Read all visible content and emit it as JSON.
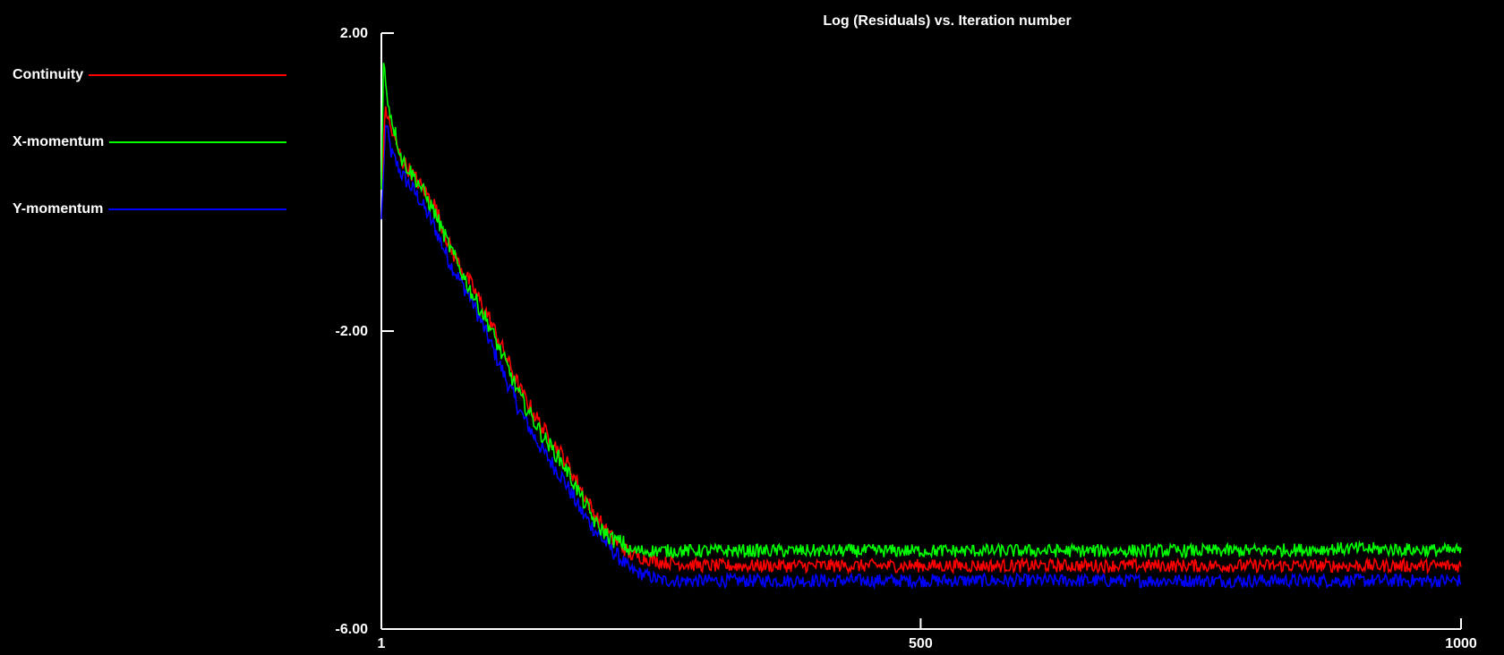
{
  "chart_data": {
    "type": "line",
    "title": "Log (Residuals) vs. Iteration number",
    "xlabel": "",
    "ylabel": "",
    "xlim": [
      1,
      1000
    ],
    "ylim": [
      -6.0,
      2.0
    ],
    "x_ticks": [
      {
        "value": 1,
        "label": "1"
      },
      {
        "value": 500,
        "label": "500"
      },
      {
        "value": 1000,
        "label": "1000"
      }
    ],
    "y_ticks": [
      {
        "value": 2.0,
        "label": "2.00"
      },
      {
        "value": -2.0,
        "label": "-2.00"
      },
      {
        "value": -6.0,
        "label": "-6.00"
      }
    ],
    "grid": false,
    "legend_position": "left",
    "series": [
      {
        "name": "Continuity",
        "color": "#ff0000",
        "points": [
          [
            1,
            -0.1
          ],
          [
            5,
            1.0
          ],
          [
            10,
            0.7
          ],
          [
            20,
            0.3
          ],
          [
            35,
            0.0
          ],
          [
            50,
            -0.3
          ],
          [
            65,
            -0.9
          ],
          [
            85,
            -1.4
          ],
          [
            100,
            -1.8
          ],
          [
            115,
            -2.3
          ],
          [
            130,
            -2.8
          ],
          [
            150,
            -3.3
          ],
          [
            170,
            -3.7
          ],
          [
            185,
            -4.1
          ],
          [
            200,
            -4.5
          ],
          [
            215,
            -4.8
          ],
          [
            225,
            -4.9
          ],
          [
            230,
            -5.0
          ],
          [
            260,
            -5.1
          ],
          [
            300,
            -5.15
          ],
          [
            400,
            -5.15
          ],
          [
            500,
            -5.15
          ],
          [
            600,
            -5.15
          ],
          [
            700,
            -5.15
          ],
          [
            800,
            -5.15
          ],
          [
            900,
            -5.15
          ],
          [
            1000,
            -5.15
          ]
        ]
      },
      {
        "name": "X-momentum",
        "color": "#00ff00",
        "points": [
          [
            1,
            -0.1
          ],
          [
            3,
            1.6
          ],
          [
            8,
            1.0
          ],
          [
            20,
            0.3
          ],
          [
            35,
            0.0
          ],
          [
            50,
            -0.4
          ],
          [
            65,
            -0.9
          ],
          [
            85,
            -1.5
          ],
          [
            100,
            -1.9
          ],
          [
            115,
            -2.4
          ],
          [
            130,
            -2.9
          ],
          [
            150,
            -3.4
          ],
          [
            170,
            -3.8
          ],
          [
            185,
            -4.2
          ],
          [
            200,
            -4.6
          ],
          [
            215,
            -4.8
          ],
          [
            225,
            -4.85
          ],
          [
            230,
            -4.95
          ],
          [
            260,
            -4.95
          ],
          [
            300,
            -4.95
          ],
          [
            400,
            -4.95
          ],
          [
            500,
            -4.95
          ],
          [
            600,
            -4.95
          ],
          [
            700,
            -4.95
          ],
          [
            800,
            -4.95
          ],
          [
            900,
            -4.92
          ],
          [
            1000,
            -4.95
          ]
        ]
      },
      {
        "name": "Y-momentum",
        "color": "#0000ff",
        "points": [
          [
            1,
            -0.5
          ],
          [
            5,
            0.8
          ],
          [
            10,
            0.4
          ],
          [
            20,
            0.1
          ],
          [
            35,
            -0.2
          ],
          [
            50,
            -0.6
          ],
          [
            65,
            -1.1
          ],
          [
            85,
            -1.6
          ],
          [
            100,
            -2.1
          ],
          [
            115,
            -2.6
          ],
          [
            130,
            -3.1
          ],
          [
            150,
            -3.6
          ],
          [
            170,
            -4.0
          ],
          [
            185,
            -4.4
          ],
          [
            200,
            -4.7
          ],
          [
            215,
            -4.95
          ],
          [
            225,
            -5.1
          ],
          [
            230,
            -5.2
          ],
          [
            260,
            -5.35
          ],
          [
            300,
            -5.35
          ],
          [
            400,
            -5.35
          ],
          [
            500,
            -5.35
          ],
          [
            600,
            -5.35
          ],
          [
            700,
            -5.35
          ],
          [
            800,
            -5.35
          ],
          [
            900,
            -5.35
          ],
          [
            1000,
            -5.35
          ]
        ]
      }
    ]
  },
  "legend": [
    {
      "label": "Continuity",
      "color": "#ff0000"
    },
    {
      "label": "X-momentum",
      "color": "#00ff00"
    },
    {
      "label": "Y-momentum",
      "color": "#0000ff"
    }
  ]
}
